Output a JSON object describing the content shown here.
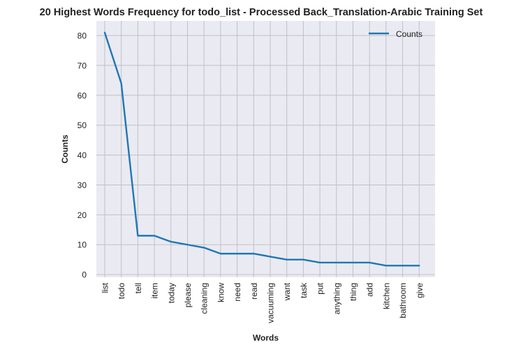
{
  "chart_data": {
    "type": "line",
    "title": "20 Highest Words Frequency for todo_list - Processed Back_Translation-Arabic Training Set",
    "xlabel": "Words",
    "ylabel": "Counts",
    "categories": [
      "list",
      "todo",
      "tell",
      "item",
      "today",
      "please",
      "cleaning",
      "know",
      "need",
      "read",
      "vacuuming",
      "want",
      "task",
      "put",
      "anything",
      "thing",
      "add",
      "kitchen",
      "bathroom",
      "give"
    ],
    "series": [
      {
        "name": "Counts",
        "values": [
          81,
          64,
          13,
          13,
          11,
          10,
          9,
          7,
          7,
          7,
          6,
          5,
          5,
          4,
          4,
          4,
          4,
          3,
          3,
          3
        ],
        "color": "#1f77b4"
      }
    ],
    "yticks": [
      0,
      10,
      20,
      30,
      40,
      50,
      60,
      70,
      80
    ],
    "ylim": [
      -0.9,
      84.9
    ],
    "grid": true,
    "legend_position": "top-right",
    "background_color": "#eaeaf2",
    "grid_color": "#c0c0c4"
  }
}
